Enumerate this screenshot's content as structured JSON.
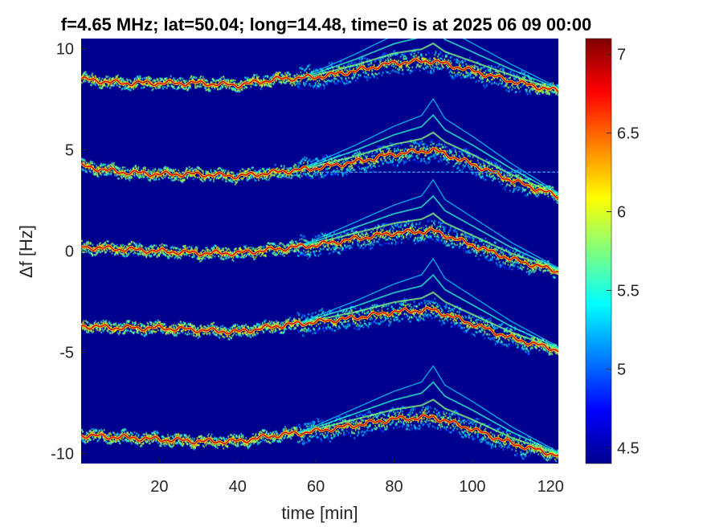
{
  "chart_data": {
    "type": "heatmap",
    "title": "f=4.65 MHz;  lat=50.04; long=14.48, time=0 is at 2025 06 09 00:00",
    "xlabel": "time [min]",
    "ylabel": "Δf [Hz]",
    "xlim": [
      0,
      122
    ],
    "ylim": [
      -10.5,
      10.5
    ],
    "xticks": [
      20,
      40,
      60,
      80,
      100,
      120
    ],
    "yticks": [
      -10,
      -5,
      0,
      5,
      10
    ],
    "colorbar": {
      "range": [
        4.4,
        7.1
      ],
      "ticks": [
        4.5,
        5,
        5.5,
        6,
        6.5,
        7
      ],
      "colormap": "jet"
    },
    "background_color": "#00008F",
    "reference_line": {
      "y": 3.9,
      "x_start": 60,
      "x_end": 122,
      "color": "#2AA8FF"
    },
    "traces": [
      {
        "x": [
          0,
          10,
          20,
          30,
          40,
          50,
          60,
          70,
          80,
          90,
          100,
          110,
          122
        ],
        "y": [
          8.5,
          8.3,
          8.3,
          8.3,
          8.2,
          8.5,
          8.6,
          8.9,
          9.3,
          9.4,
          8.9,
          8.4,
          7.9
        ]
      },
      {
        "x": [
          0,
          10,
          20,
          30,
          40,
          50,
          60,
          70,
          80,
          90,
          100,
          110,
          122
        ],
        "y": [
          4.2,
          3.9,
          3.8,
          3.8,
          3.7,
          3.9,
          4.1,
          4.4,
          4.8,
          5.0,
          4.3,
          3.5,
          2.7
        ]
      },
      {
        "x": [
          0,
          10,
          20,
          30,
          40,
          50,
          60,
          70,
          80,
          90,
          100,
          110,
          122
        ],
        "y": [
          0.2,
          0.1,
          0.0,
          -0.1,
          -0.1,
          0.1,
          0.3,
          0.6,
          0.9,
          1.0,
          0.3,
          -0.4,
          -1.0
        ]
      },
      {
        "x": [
          0,
          10,
          20,
          30,
          40,
          50,
          60,
          70,
          80,
          90,
          100,
          110,
          122
        ],
        "y": [
          -3.7,
          -3.8,
          -3.8,
          -3.9,
          -4.0,
          -3.7,
          -3.5,
          -3.3,
          -3.0,
          -2.9,
          -3.6,
          -4.3,
          -4.9
        ]
      },
      {
        "x": [
          0,
          10,
          20,
          30,
          40,
          50,
          60,
          70,
          80,
          90,
          100,
          110,
          122
        ],
        "y": [
          -9.1,
          -9.2,
          -9.3,
          -9.4,
          -9.4,
          -9.1,
          -8.9,
          -8.6,
          -8.3,
          -8.2,
          -8.8,
          -9.5,
          -10.1
        ]
      }
    ],
    "harmonic_offsets": [
      0.55,
      1.1,
      1.6
    ],
    "harmonic_range": [
      55,
      122
    ],
    "peak_time": 90
  }
}
